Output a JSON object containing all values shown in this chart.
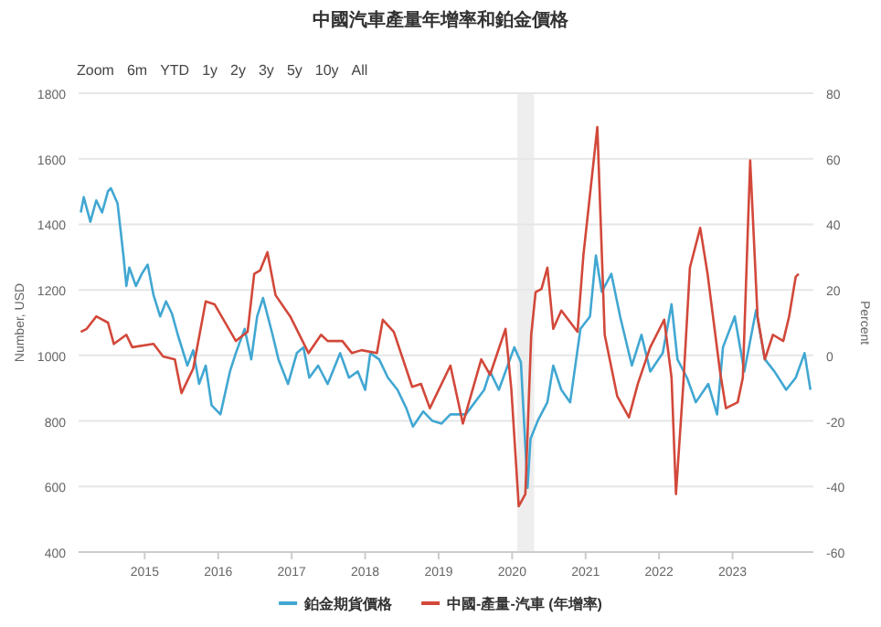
{
  "chart_data": {
    "type": "line",
    "title": "中國汽車產量年增率和鉑金價格",
    "annotations": [
      "Zoom",
      "6m",
      "YTD",
      "1y",
      "2y",
      "3y",
      "5y",
      "10y",
      "All"
    ],
    "ylabel": "Number, USD",
    "y2label": "Percent",
    "xlim": [
      2014.1,
      2024.1
    ],
    "xticks": [
      2015,
      2016,
      2017,
      2018,
      2019,
      2020,
      2021,
      2022,
      2023
    ],
    "ylim": [
      400,
      1800
    ],
    "yticks": [
      400,
      600,
      800,
      1000,
      1200,
      1400,
      1600,
      1800
    ],
    "y2lim": [
      -60,
      80
    ],
    "y2ticks": [
      -60,
      -40,
      -20,
      0,
      20,
      40,
      60,
      80
    ],
    "grid": "y",
    "legend": "bottom",
    "line_style": "solid",
    "marker": "none",
    "bands": [
      {
        "axis": "x",
        "from": 2020.07,
        "to": 2020.3,
        "color": "#eeeeee"
      }
    ],
    "series": [
      {
        "name": "鉑金期貨價格",
        "color": "#41a7d2",
        "x": [
          2014.13,
          2014.17,
          2014.26,
          2014.34,
          2014.42,
          2014.5,
          2014.54,
          2014.63,
          2014.71,
          2014.75,
          2014.79,
          2014.88,
          2014.96,
          2015.04,
          2015.12,
          2015.21,
          2015.29,
          2015.37,
          2015.45,
          2015.58,
          2015.66,
          2015.74,
          2015.83,
          2015.91,
          2016.03,
          2016.16,
          2016.24,
          2016.36,
          2016.45,
          2016.53,
          2016.61,
          2016.74,
          2016.82,
          2016.95,
          2017.07,
          2017.16,
          2017.24,
          2017.36,
          2017.49,
          2017.66,
          2017.78,
          2017.9,
          2018.0,
          2018.07,
          2018.19,
          2018.31,
          2018.44,
          2018.56,
          2018.65,
          2018.79,
          2018.91,
          2019.04,
          2019.16,
          2019.37,
          2019.62,
          2019.7,
          2019.82,
          2020.03,
          2020.12,
          2020.21,
          2020.25,
          2020.35,
          2020.48,
          2020.56,
          2020.67,
          2020.79,
          2020.93,
          2021.06,
          2021.14,
          2021.22,
          2021.35,
          2021.47,
          2021.63,
          2021.76,
          2021.88,
          2022.05,
          2022.17,
          2022.25,
          2022.38,
          2022.5,
          2022.67,
          2022.79,
          2022.87,
          2023.03,
          2023.16,
          2023.32,
          2023.44,
          2023.57,
          2023.73,
          2023.86,
          2023.98,
          2024.06
        ],
        "values": [
          1436,
          1483,
          1408,
          1473,
          1436,
          1501,
          1510,
          1464,
          1305,
          1212,
          1268,
          1212,
          1249,
          1277,
          1184,
          1119,
          1165,
          1128,
          1063,
          969,
          1016,
          913,
          969,
          848,
          820,
          951,
          1007,
          1081,
          988,
          1119,
          1175,
          1063,
          988,
          913,
          1007,
          1025,
          932,
          969,
          913,
          1007,
          932,
          951,
          895,
          1007,
          988,
          932,
          895,
          839,
          783,
          829,
          801,
          792,
          820,
          820,
          895,
          951,
          895,
          1025,
          979,
          596,
          745,
          801,
          857,
          969,
          895,
          857,
          1081,
          1119,
          1305,
          1194,
          1249,
          1119,
          969,
          1063,
          951,
          1007,
          1156,
          988,
          932,
          857,
          913,
          820,
          1025,
          1119,
          951,
          1138,
          988,
          951,
          895,
          932,
          1007,
          895
        ]
      },
      {
        "name": "中國-產量-汽車 (年增率)",
        "color": "#d2483a",
        "axis": "y2",
        "x": [
          2014.13,
          2014.21,
          2014.34,
          2014.5,
          2014.58,
          2014.75,
          2014.83,
          2015.12,
          2015.25,
          2015.41,
          2015.5,
          2015.66,
          2015.83,
          2015.95,
          2016.24,
          2016.4,
          2016.49,
          2016.57,
          2016.67,
          2016.78,
          2016.98,
          2017.23,
          2017.4,
          2017.49,
          2017.69,
          2017.82,
          2017.95,
          2018.16,
          2018.24,
          2018.39,
          2018.64,
          2018.76,
          2018.88,
          2019.16,
          2019.33,
          2019.58,
          2019.7,
          2019.91,
          2019.99,
          2020.09,
          2020.18,
          2020.26,
          2020.32,
          2020.4,
          2020.48,
          2020.56,
          2020.67,
          2020.89,
          2020.97,
          2021.16,
          2021.26,
          2021.43,
          2021.59,
          2021.71,
          2021.88,
          2022.07,
          2022.17,
          2022.23,
          2022.33,
          2022.42,
          2022.56,
          2022.66,
          2022.83,
          2022.91,
          2023.07,
          2023.14,
          2023.24,
          2023.34,
          2023.44,
          2023.55,
          2023.69,
          2023.77,
          2023.86,
          2023.9
        ],
        "values": [
          7.2,
          8.1,
          11.9,
          10.0,
          3.5,
          6.3,
          2.5,
          3.5,
          -0.3,
          -1.2,
          -11.5,
          -4.0,
          16.5,
          15.6,
          4.4,
          7.2,
          24.9,
          25.9,
          31.5,
          18.4,
          11.9,
          0.7,
          6.3,
          4.4,
          4.4,
          0.7,
          1.6,
          0.7,
          10.9,
          7.2,
          -9.6,
          -8.7,
          -16.1,
          -3.1,
          -20.8,
          -1.2,
          -5.9,
          8.1,
          -10.5,
          -46.0,
          -42.3,
          6.3,
          19.3,
          20.3,
          26.8,
          8.1,
          13.7,
          7.2,
          30.5,
          69.7,
          6.3,
          -12.4,
          -18.9,
          -8.7,
          2.5,
          10.9,
          -6.8,
          -42.3,
          -8.7,
          26.8,
          38.9,
          24.9,
          -5.0,
          -16.1,
          -14.3,
          -6.8,
          59.5,
          11.9,
          -1.2,
          6.3,
          4.4,
          11.9,
          24.0,
          24.9
        ]
      }
    ]
  }
}
